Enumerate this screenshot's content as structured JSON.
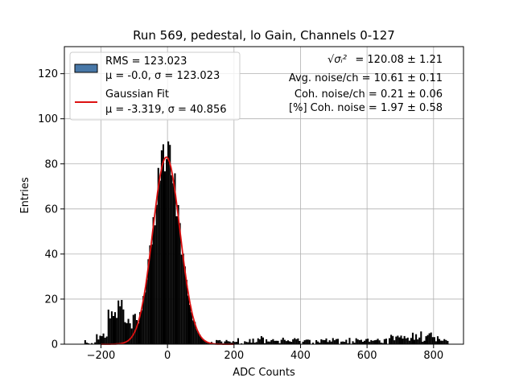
{
  "chart_data": {
    "type": "bar",
    "title": "Run 569, pedestal, lo Gain, Channels 0-127",
    "xlabel": "ADC Counts",
    "ylabel": "Entries",
    "xlim": [
      -310,
      890
    ],
    "ylim": [
      0,
      132
    ],
    "xticks": [
      -200,
      0,
      200,
      400,
      600,
      800
    ],
    "yticks": [
      0,
      20,
      40,
      60,
      80,
      100,
      120
    ],
    "grid": true,
    "legend_position": "top-left",
    "legend": [
      {
        "name": "RMS = 123.023",
        "detail": "μ = -0.0, σ = 123.023",
        "kind": "patch",
        "color": "#4878a8"
      },
      {
        "name": "Gaussian Fit",
        "detail": "μ = -3.319, σ = 40.856",
        "kind": "line",
        "color": "#dd1111"
      }
    ],
    "annotations": [
      {
        "symbol": "√σᵢ²",
        "text": "= 120.08 ± 1.21"
      },
      {
        "text": "Avg. noise/ch = 10.61 ± 0.11"
      },
      {
        "text": "Coh. noise/ch = 0.21 ± 0.06"
      },
      {
        "text": "[%] Coh. noise = 1.97 ± 0.58"
      }
    ],
    "histogram": {
      "bin_width": 5,
      "color": "#000000",
      "regions": [
        {
          "from": -250,
          "to": -215,
          "lo": 0,
          "hi": 2
        },
        {
          "from": -215,
          "to": -180,
          "lo": 2,
          "hi": 8
        },
        {
          "from": -180,
          "to": -160,
          "lo": 8,
          "hi": 17
        },
        {
          "from": -160,
          "to": -130,
          "lo": 10,
          "hi": 20
        },
        {
          "from": -130,
          "to": -90,
          "lo": 4,
          "hi": 14
        },
        {
          "from": 130,
          "to": 200,
          "lo": 0,
          "hi": 2
        },
        {
          "from": 200,
          "to": 310,
          "lo": 0,
          "hi": 4
        },
        {
          "from": 310,
          "to": 660,
          "lo": 0,
          "hi": 3
        },
        {
          "from": 660,
          "to": 720,
          "lo": 0,
          "hi": 5
        },
        {
          "from": 720,
          "to": 800,
          "lo": 1,
          "hi": 6
        },
        {
          "from": 800,
          "to": 845,
          "lo": 0,
          "hi": 4
        }
      ],
      "peak": {
        "mu": -3.319,
        "sigma": 40.856,
        "amplitude": 84,
        "range": [
          -90,
          130
        ]
      }
    },
    "fit": {
      "type": "gaussian",
      "mu": -3.319,
      "sigma": 40.856,
      "amplitude": 83,
      "x_range": [
        -200,
        200
      ],
      "color": "#dd1111"
    }
  }
}
